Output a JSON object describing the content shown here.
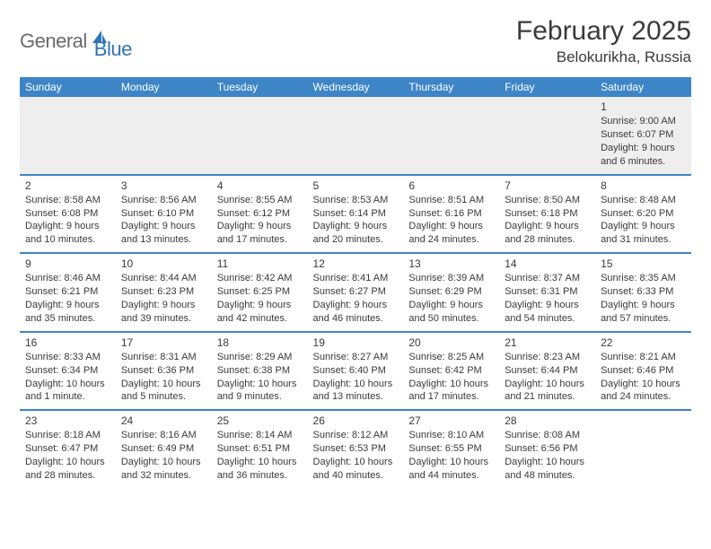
{
  "logo": {
    "text1": "General",
    "text2": "Blue"
  },
  "title": "February 2025",
  "location": "Belokurikha, Russia",
  "colors": {
    "header_bg": "#3d85c6",
    "header_fg": "#ffffff",
    "border": "#3d85c6",
    "first_week_bg": "#eeeeee",
    "text": "#3a3a3a",
    "logo_gray": "#6a6a6a",
    "logo_blue": "#2f74b5"
  },
  "day_headers": [
    "Sunday",
    "Monday",
    "Tuesday",
    "Wednesday",
    "Thursday",
    "Friday",
    "Saturday"
  ],
  "weeks": [
    [
      null,
      null,
      null,
      null,
      null,
      null,
      {
        "n": "1",
        "sunrise": "9:00 AM",
        "sunset": "6:07 PM",
        "daylight": "9 hours and 6 minutes."
      }
    ],
    [
      {
        "n": "2",
        "sunrise": "8:58 AM",
        "sunset": "6:08 PM",
        "daylight": "9 hours and 10 minutes."
      },
      {
        "n": "3",
        "sunrise": "8:56 AM",
        "sunset": "6:10 PM",
        "daylight": "9 hours and 13 minutes."
      },
      {
        "n": "4",
        "sunrise": "8:55 AM",
        "sunset": "6:12 PM",
        "daylight": "9 hours and 17 minutes."
      },
      {
        "n": "5",
        "sunrise": "8:53 AM",
        "sunset": "6:14 PM",
        "daylight": "9 hours and 20 minutes."
      },
      {
        "n": "6",
        "sunrise": "8:51 AM",
        "sunset": "6:16 PM",
        "daylight": "9 hours and 24 minutes."
      },
      {
        "n": "7",
        "sunrise": "8:50 AM",
        "sunset": "6:18 PM",
        "daylight": "9 hours and 28 minutes."
      },
      {
        "n": "8",
        "sunrise": "8:48 AM",
        "sunset": "6:20 PM",
        "daylight": "9 hours and 31 minutes."
      }
    ],
    [
      {
        "n": "9",
        "sunrise": "8:46 AM",
        "sunset": "6:21 PM",
        "daylight": "9 hours and 35 minutes."
      },
      {
        "n": "10",
        "sunrise": "8:44 AM",
        "sunset": "6:23 PM",
        "daylight": "9 hours and 39 minutes."
      },
      {
        "n": "11",
        "sunrise": "8:42 AM",
        "sunset": "6:25 PM",
        "daylight": "9 hours and 42 minutes."
      },
      {
        "n": "12",
        "sunrise": "8:41 AM",
        "sunset": "6:27 PM",
        "daylight": "9 hours and 46 minutes."
      },
      {
        "n": "13",
        "sunrise": "8:39 AM",
        "sunset": "6:29 PM",
        "daylight": "9 hours and 50 minutes."
      },
      {
        "n": "14",
        "sunrise": "8:37 AM",
        "sunset": "6:31 PM",
        "daylight": "9 hours and 54 minutes."
      },
      {
        "n": "15",
        "sunrise": "8:35 AM",
        "sunset": "6:33 PM",
        "daylight": "9 hours and 57 minutes."
      }
    ],
    [
      {
        "n": "16",
        "sunrise": "8:33 AM",
        "sunset": "6:34 PM",
        "daylight": "10 hours and 1 minute."
      },
      {
        "n": "17",
        "sunrise": "8:31 AM",
        "sunset": "6:36 PM",
        "daylight": "10 hours and 5 minutes."
      },
      {
        "n": "18",
        "sunrise": "8:29 AM",
        "sunset": "6:38 PM",
        "daylight": "10 hours and 9 minutes."
      },
      {
        "n": "19",
        "sunrise": "8:27 AM",
        "sunset": "6:40 PM",
        "daylight": "10 hours and 13 minutes."
      },
      {
        "n": "20",
        "sunrise": "8:25 AM",
        "sunset": "6:42 PM",
        "daylight": "10 hours and 17 minutes."
      },
      {
        "n": "21",
        "sunrise": "8:23 AM",
        "sunset": "6:44 PM",
        "daylight": "10 hours and 21 minutes."
      },
      {
        "n": "22",
        "sunrise": "8:21 AM",
        "sunset": "6:46 PM",
        "daylight": "10 hours and 24 minutes."
      }
    ],
    [
      {
        "n": "23",
        "sunrise": "8:18 AM",
        "sunset": "6:47 PM",
        "daylight": "10 hours and 28 minutes."
      },
      {
        "n": "24",
        "sunrise": "8:16 AM",
        "sunset": "6:49 PM",
        "daylight": "10 hours and 32 minutes."
      },
      {
        "n": "25",
        "sunrise": "8:14 AM",
        "sunset": "6:51 PM",
        "daylight": "10 hours and 36 minutes."
      },
      {
        "n": "26",
        "sunrise": "8:12 AM",
        "sunset": "6:53 PM",
        "daylight": "10 hours and 40 minutes."
      },
      {
        "n": "27",
        "sunrise": "8:10 AM",
        "sunset": "6:55 PM",
        "daylight": "10 hours and 44 minutes."
      },
      {
        "n": "28",
        "sunrise": "8:08 AM",
        "sunset": "6:56 PM",
        "daylight": "10 hours and 48 minutes."
      },
      null
    ]
  ],
  "labels": {
    "sunrise": "Sunrise:",
    "sunset": "Sunset:",
    "daylight": "Daylight:"
  }
}
